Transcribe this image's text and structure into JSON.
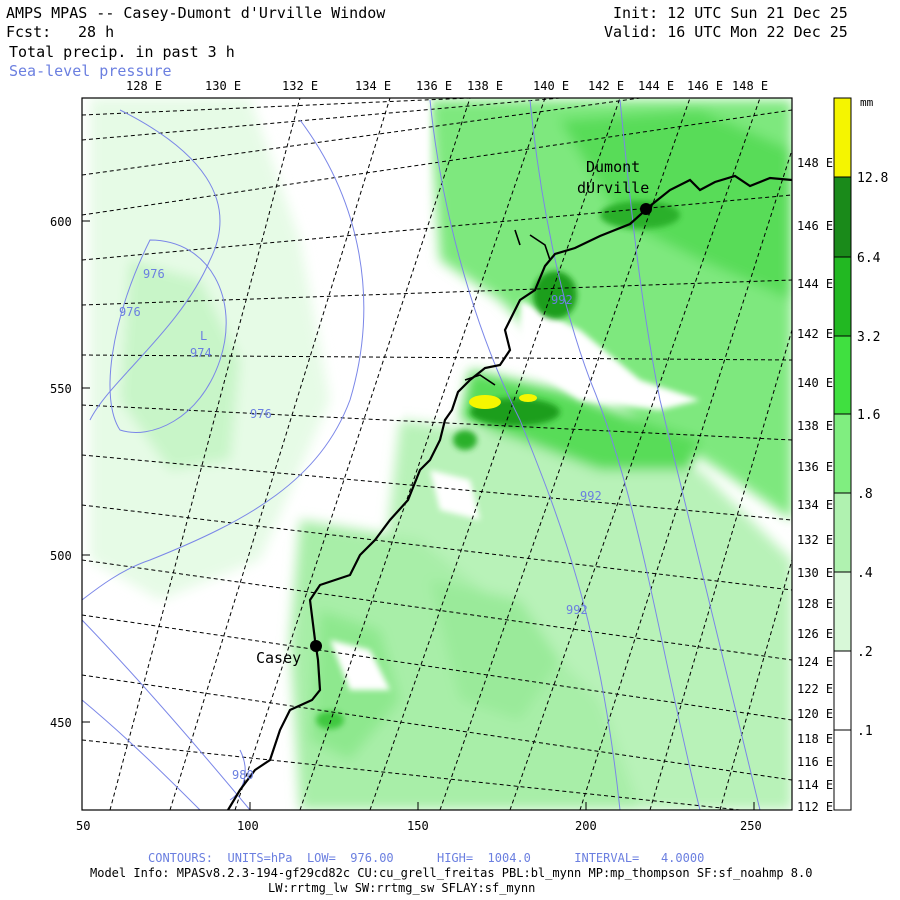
{
  "header": {
    "title": "AMPS MPAS -- Casey-Dumont d'Urville Window",
    "fcst_label": "Fcst:",
    "fcst_value": "28 h",
    "field_name": "Total precip. in past 3 h",
    "overlay_name": "Sea-level pressure",
    "init": "Init: 12 UTC Sun 21 Dec 25",
    "valid": "Valid: 16 UTC Mon 22 Dec 25"
  },
  "axes": {
    "top_lon_labels": [
      "128 E",
      "130 E",
      "132 E",
      "134 E",
      "136 E",
      "138 E",
      "140 E",
      "142 E",
      "144 E",
      "146 E",
      "148 E"
    ],
    "right_lat_labels": [
      "148 E",
      "146 E",
      "144 E",
      "142 E",
      "140 E",
      "138 E",
      "136 E",
      "134 E",
      "132 E",
      "130 E",
      "128 E",
      "126 E",
      "124 E",
      "122 E",
      "120 E",
      "118 E",
      "116 E",
      "114 E",
      "112 E"
    ],
    "bottom_x_labels": [
      "50",
      "100",
      "150",
      "200",
      "250"
    ],
    "left_y_labels": [
      "600",
      "550",
      "500",
      "450"
    ]
  },
  "colorbar": {
    "unit": "mm",
    "labels": [
      "12.8",
      "6.4",
      "3.2",
      "1.6",
      ".8",
      ".4",
      ".2",
      ".1"
    ],
    "colors": [
      "#ffff00",
      "#1a8a1a",
      "#22b822",
      "#40e040",
      "#80ee80",
      "#b0f2b0",
      "#d8f8d8",
      "#ffffff"
    ]
  },
  "stations": [
    {
      "name_line1": "Dumont",
      "name_line2": "dUrville"
    },
    {
      "name_line1": "Casey"
    }
  ],
  "pressure_labels": [
    "976",
    "976",
    "L",
    "974",
    "976",
    "992",
    "992",
    "992",
    "980"
  ],
  "footer": {
    "contours": "CONTOURS:  UNITS=hPa  LOW=  976.00      HIGH=  1004.0      INTERVAL=   4.0000",
    "model_info_1": "Model Info: MPASv8.2.3-194-gf29cd82c CU:cu_grell_freitas PBL:bl_mynn MP:mp_thompson SF:sf_noahmp 8.0",
    "model_info_2": "LW:rrtmg_lw SW:rrtmg_sw SFLAY:sf_mynn"
  }
}
